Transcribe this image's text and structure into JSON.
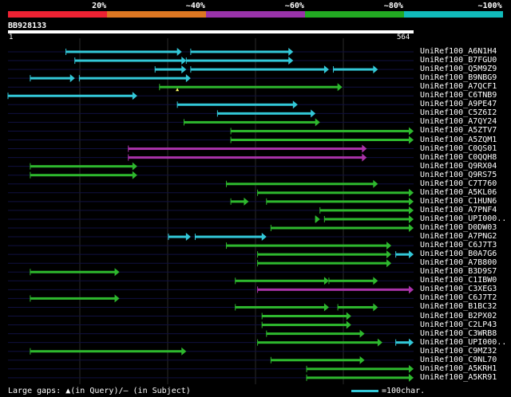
{
  "scale": {
    "segments": [
      {
        "color": "#ee2233",
        "label": "20%"
      },
      {
        "color": "#dd7722",
        "label": "~40%"
      },
      {
        "color": "#9933aa",
        "label": "~60%"
      },
      {
        "color": "#22aa22",
        "label": "~80%"
      },
      {
        "color": "#11bbbb",
        "label": "~100%"
      }
    ]
  },
  "query": {
    "id": "BB928133",
    "start": "1",
    "end": "564",
    "length": 564
  },
  "colors": {
    "cyan": "#33c8d8",
    "green": "#2eb82e",
    "magenta": "#aa33aa",
    "row_line": "#101040",
    "grid": "#2a2a2a"
  },
  "hits": [
    {
      "name": "UniRef100_A6N1H4",
      "segs": [
        [
          130,
          390,
          "cyan"
        ],
        [
          410,
          640,
          "cyan"
        ]
      ]
    },
    {
      "name": "UniRef100_B7FGU0",
      "segs": [
        [
          150,
          400,
          "cyan"
        ],
        [
          400,
          640,
          "cyan"
        ]
      ]
    },
    {
      "name": "UniRef100_Q5M9Z9",
      "segs": [
        [
          330,
          400,
          "cyan"
        ],
        [
          410,
          720,
          "cyan"
        ],
        [
          730,
          830,
          "cyan"
        ]
      ]
    },
    {
      "name": "UniRef100_B9NBG9",
      "segs": [
        [
          50,
          150,
          "cyan"
        ],
        [
          160,
          410,
          "cyan"
        ]
      ]
    },
    {
      "name": "UniRef100_A7QCF1",
      "segs": [
        [
          340,
          750,
          "green"
        ]
      ],
      "gap": [
        380,
        "q"
      ]
    },
    {
      "name": "UniRef100_C6TNB9",
      "segs": [
        [
          0,
          290,
          "cyan"
        ]
      ]
    },
    {
      "name": "UniRef100_A9PE47",
      "segs": [
        [
          380,
          650,
          "cyan"
        ]
      ]
    },
    {
      "name": "UniRef100_C5Z6I2",
      "segs": [
        [
          470,
          690,
          "cyan"
        ]
      ]
    },
    {
      "name": "UniRef100_A7QY24",
      "segs": [
        [
          395,
          700,
          "green"
        ]
      ]
    },
    {
      "name": "UniRef100_A5ZTV7",
      "segs": [
        [
          500,
          910,
          "green"
        ]
      ]
    },
    {
      "name": "UniRef100_A5ZQM1",
      "segs": [
        [
          500,
          910,
          "green"
        ]
      ]
    },
    {
      "name": "UniRef100_C0QS01",
      "segs": [
        [
          270,
          805,
          "magenta"
        ]
      ]
    },
    {
      "name": "UniRef100_C0QQH8",
      "segs": [
        [
          270,
          805,
          "magenta"
        ]
      ]
    },
    {
      "name": "UniRef100_Q9RX04",
      "segs": [
        [
          50,
          290,
          "green"
        ]
      ]
    },
    {
      "name": "UniRef100_Q9RS75",
      "segs": [
        [
          50,
          290,
          "green"
        ]
      ]
    },
    {
      "name": "UniRef100_C7T760",
      "segs": [
        [
          490,
          830,
          "green"
        ]
      ]
    },
    {
      "name": "UniRef100_A5KL06",
      "segs": [
        [
          560,
          910,
          "green"
        ]
      ]
    },
    {
      "name": "UniRef100_C1HUN6",
      "segs": [
        [
          500,
          540,
          "green"
        ],
        [
          580,
          910,
          "green"
        ]
      ]
    },
    {
      "name": "UniRef100_A7PNF4",
      "segs": [
        [
          700,
          910,
          "green"
        ]
      ]
    },
    {
      "name": "UniRef100_UPI000..",
      "segs": [
        [
          690,
          700,
          "green"
        ],
        [
          710,
          910,
          "green"
        ]
      ]
    },
    {
      "name": "UniRef100_D0DW03",
      "segs": [
        [
          590,
          910,
          "green"
        ]
      ]
    },
    {
      "name": "UniRef100_A7PNG2",
      "segs": [
        [
          360,
          410,
          "cyan"
        ],
        [
          420,
          580,
          "cyan"
        ]
      ]
    },
    {
      "name": "UniRef100_C6J7T3",
      "segs": [
        [
          490,
          860,
          "green"
        ]
      ]
    },
    {
      "name": "UniRef100_B0A7G6",
      "segs": [
        [
          560,
          860,
          "green"
        ],
        [
          870,
          910,
          "cyan"
        ]
      ]
    },
    {
      "name": "UniRef100_A7B800",
      "segs": [
        [
          560,
          860,
          "green"
        ]
      ]
    },
    {
      "name": "UniRef100_B3D9S7",
      "segs": [
        [
          50,
          250,
          "green"
        ]
      ]
    },
    {
      "name": "UniRef100_C1IBW0",
      "segs": [
        [
          510,
          720,
          "green"
        ],
        [
          720,
          830,
          "green"
        ]
      ]
    },
    {
      "name": "UniRef100_C3XEG3",
      "segs": [
        [
          560,
          910,
          "magenta"
        ]
      ]
    },
    {
      "name": "UniRef100_C6J7T2",
      "segs": [
        [
          50,
          250,
          "green"
        ]
      ]
    },
    {
      "name": "UniRef100_B1BC32",
      "segs": [
        [
          510,
          720,
          "green"
        ],
        [
          740,
          830,
          "green"
        ]
      ]
    },
    {
      "name": "UniRef100_B2PX02",
      "segs": [
        [
          570,
          770,
          "green"
        ]
      ]
    },
    {
      "name": "UniRef100_C2LP43",
      "segs": [
        [
          570,
          770,
          "green"
        ]
      ]
    },
    {
      "name": "UniRef100_C3WRB8",
      "segs": [
        [
          580,
          800,
          "green"
        ]
      ]
    },
    {
      "name": "UniRef100_UPI000..",
      "segs": [
        [
          560,
          840,
          "green"
        ],
        [
          870,
          910,
          "cyan"
        ]
      ]
    },
    {
      "name": "UniRef100_C9MZ32",
      "segs": [
        [
          50,
          400,
          "green"
        ]
      ]
    },
    {
      "name": "UniRef100_C9NL70",
      "segs": [
        [
          590,
          800,
          "green"
        ]
      ]
    },
    {
      "name": "UniRef100_A5KRH1",
      "segs": [
        [
          670,
          910,
          "green"
        ]
      ]
    },
    {
      "name": "UniRef100_A5KR91",
      "segs": [
        [
          670,
          910,
          "green"
        ]
      ]
    }
  ],
  "footer": {
    "gaps_label": "Large gaps: ▲(in Query)/– (in Subject)",
    "legend_label": "=100char."
  }
}
